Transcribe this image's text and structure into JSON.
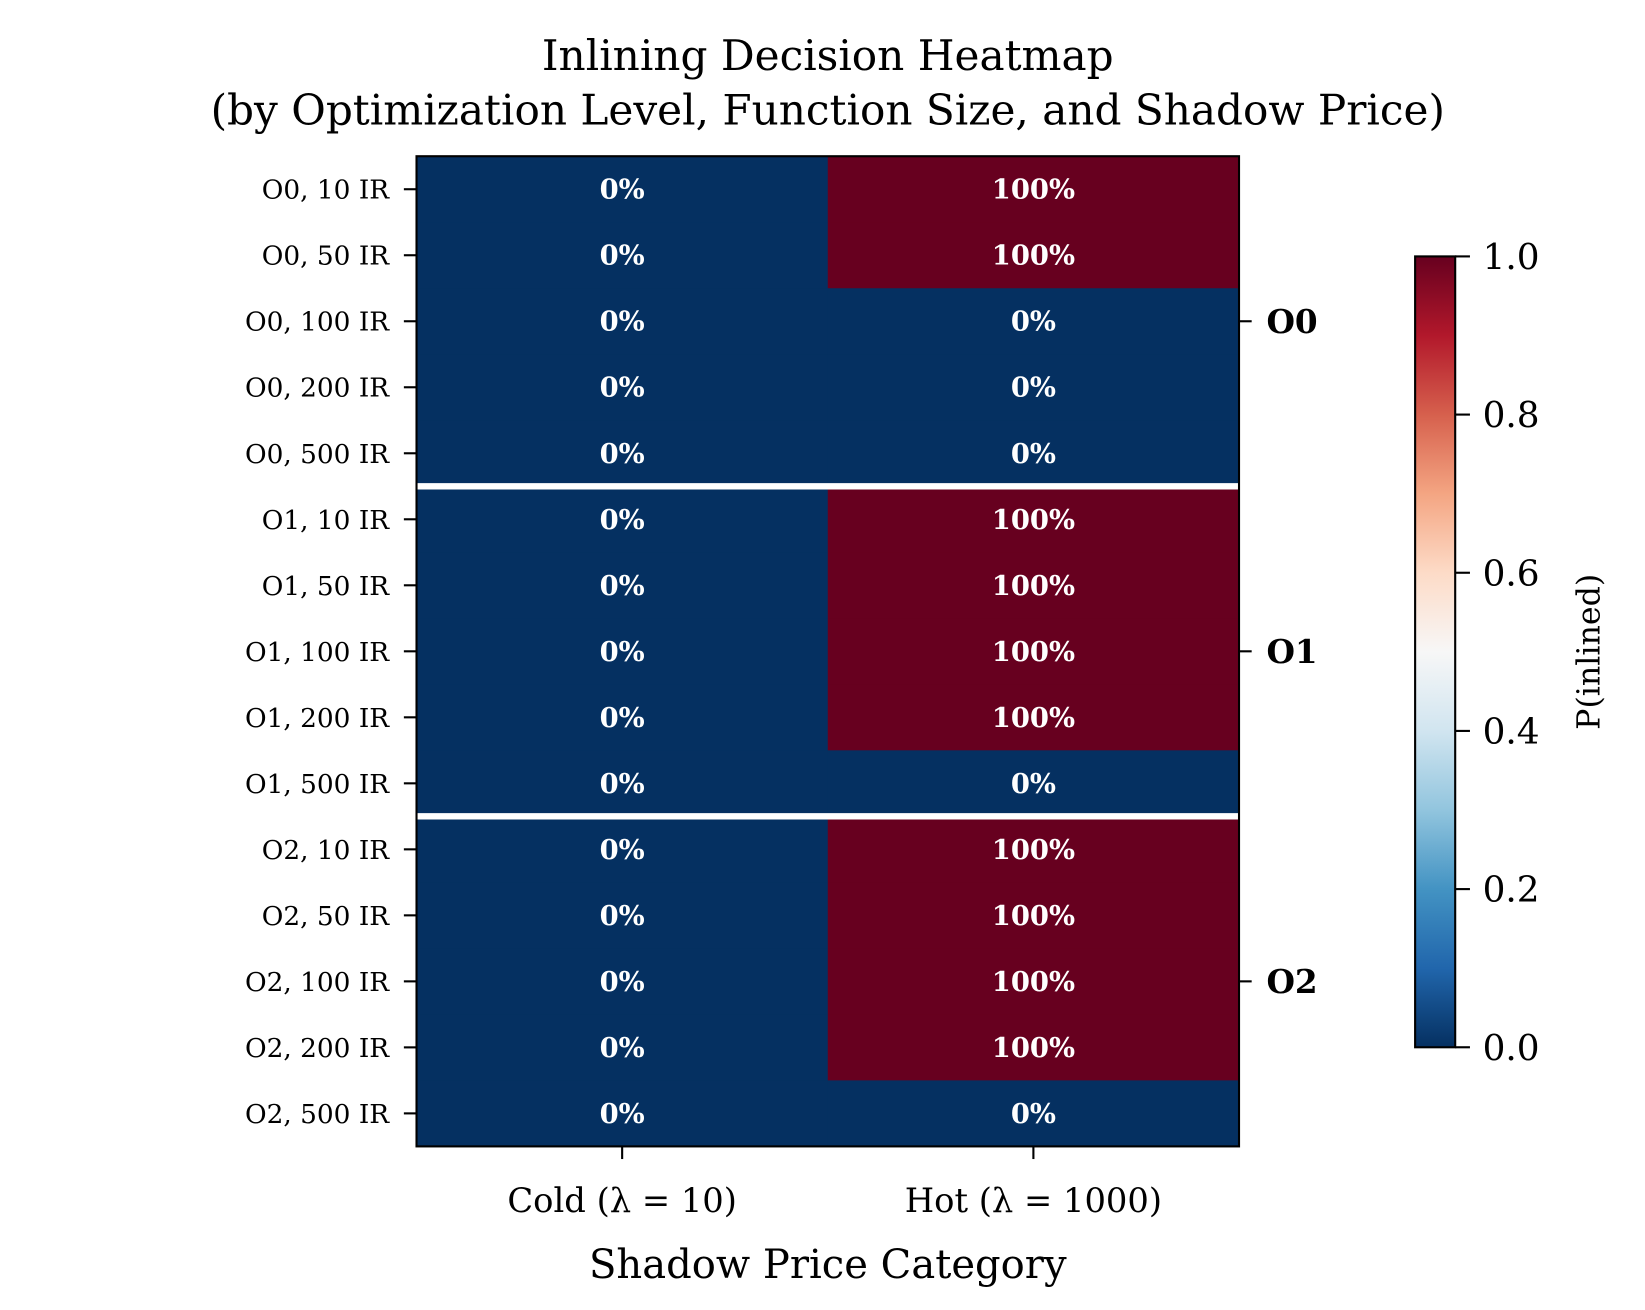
{
  "chart_data": {
    "type": "heatmap",
    "title": "Inlining Decision Heatmap",
    "subtitle": "(by Optimization Level, Function Size, and Shadow Price)",
    "xlabel": "Shadow Price Category",
    "x_categories": [
      "Cold (λ = 10)",
      "Hot (λ = 1000)"
    ],
    "y_categories": [
      "O0, 10 IR",
      "O0, 50 IR",
      "O0, 100 IR",
      "O0, 200 IR",
      "O0, 500 IR",
      "O1, 10 IR",
      "O1, 50 IR",
      "O1, 100 IR",
      "O1, 200 IR",
      "O1, 500 IR",
      "O2, 10 IR",
      "O2, 50 IR",
      "O2, 100 IR",
      "O2, 200 IR",
      "O2, 500 IR"
    ],
    "values": [
      [
        0,
        1
      ],
      [
        0,
        1
      ],
      [
        0,
        0
      ],
      [
        0,
        0
      ],
      [
        0,
        0
      ],
      [
        0,
        1
      ],
      [
        0,
        1
      ],
      [
        0,
        1
      ],
      [
        0,
        1
      ],
      [
        0,
        0
      ],
      [
        0,
        1
      ],
      [
        0,
        1
      ],
      [
        0,
        1
      ],
      [
        0,
        1
      ],
      [
        0,
        0
      ]
    ],
    "cell_labels": [
      [
        "0%",
        "100%"
      ],
      [
        "0%",
        "100%"
      ],
      [
        "0%",
        "0%"
      ],
      [
        "0%",
        "0%"
      ],
      [
        "0%",
        "0%"
      ],
      [
        "0%",
        "100%"
      ],
      [
        "0%",
        "100%"
      ],
      [
        "0%",
        "100%"
      ],
      [
        "0%",
        "100%"
      ],
      [
        "0%",
        "0%"
      ],
      [
        "0%",
        "100%"
      ],
      [
        "0%",
        "100%"
      ],
      [
        "0%",
        "100%"
      ],
      [
        "0%",
        "100%"
      ],
      [
        "0%",
        "0%"
      ]
    ],
    "groups": [
      "O0",
      "O1",
      "O2"
    ],
    "colorbar": {
      "label": "P(inlined)",
      "range": [
        0,
        1
      ],
      "ticks": [
        "0.0",
        "0.2",
        "0.4",
        "0.6",
        "0.8",
        "1.0"
      ],
      "colormap": "RdBu_r"
    },
    "colors": {
      "low": "#053061",
      "high": "#67001f",
      "separator": "#ffffff"
    }
  }
}
